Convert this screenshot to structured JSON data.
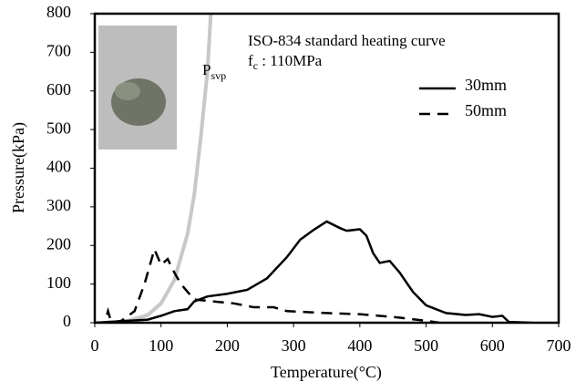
{
  "chart_data": {
    "type": "line",
    "x_label": "Temperature(°C)",
    "y_label": "Pressure(kPa)",
    "annotation": "ISO-834 standard heating curve",
    "fc_label": {
      "main": "f",
      "sub": "c",
      "rest": " : 110MPa"
    },
    "psvp_label": {
      "main": "P",
      "sub": "svp"
    },
    "xlim": [
      0,
      700
    ],
    "xticks": [
      0,
      100,
      200,
      300,
      400,
      500,
      600,
      700
    ],
    "ylim": [
      0,
      800
    ],
    "yticks": [
      0,
      100,
      200,
      300,
      400,
      500,
      600,
      700,
      800
    ],
    "grid": false,
    "series": [
      {
        "name": "30mm",
        "color": "#000000",
        "dash": false,
        "x": [
          0,
          20,
          50,
          80,
          100,
          120,
          140,
          150,
          170,
          200,
          230,
          260,
          290,
          310,
          330,
          350,
          370,
          380,
          400,
          410,
          420,
          430,
          445,
          460,
          480,
          500,
          530,
          560,
          580,
          600,
          615,
          625,
          660
        ],
        "values": [
          0,
          2,
          5,
          8,
          18,
          30,
          35,
          55,
          68,
          75,
          85,
          115,
          170,
          215,
          240,
          262,
          245,
          238,
          242,
          225,
          180,
          155,
          160,
          130,
          80,
          45,
          25,
          20,
          22,
          15,
          18,
          2,
          0
        ]
      },
      {
        "name": "50mm",
        "color": "#000000",
        "dash": true,
        "x": [
          0,
          15,
          20,
          25,
          40,
          60,
          75,
          90,
          100,
          110,
          120,
          130,
          150,
          180,
          210,
          240,
          270,
          290,
          350,
          400,
          450,
          500,
          520
        ],
        "values": [
          0,
          0,
          30,
          0,
          5,
          30,
          100,
          190,
          150,
          165,
          130,
          100,
          60,
          55,
          50,
          40,
          40,
          30,
          25,
          22,
          15,
          5,
          0
        ]
      }
    ],
    "psvp_curve": {
      "color": "#c8c8c8",
      "x": [
        30,
        50,
        80,
        100,
        120,
        140,
        150,
        160,
        170,
        175
      ],
      "values": [
        0,
        5,
        20,
        50,
        110,
        230,
        330,
        480,
        650,
        800
      ]
    }
  }
}
